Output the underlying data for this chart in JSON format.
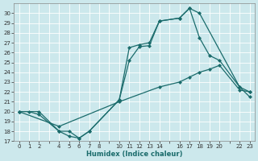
{
  "xlabel": "Humidex (Indice chaleur)",
  "background_color": "#cce8ec",
  "grid_color": "#ffffff",
  "line_color": "#1a6b6b",
  "xlim": [
    -0.5,
    23.5
  ],
  "ylim": [
    17,
    31
  ],
  "xticks_shown": [
    0,
    1,
    2,
    4,
    5,
    6,
    7,
    8,
    10,
    11,
    12,
    13,
    14,
    16,
    17,
    18,
    19,
    20,
    22,
    23
  ],
  "yticks": [
    17,
    18,
    19,
    20,
    21,
    22,
    23,
    24,
    25,
    26,
    27,
    28,
    29,
    30
  ],
  "line1_x": [
    0,
    1,
    2,
    4,
    5,
    6,
    7,
    10,
    11,
    12,
    13,
    14,
    16,
    17,
    18,
    22,
    23
  ],
  "line1_y": [
    20,
    20,
    19.7,
    18,
    17.5,
    17.3,
    18,
    21.2,
    26.5,
    26.8,
    27.0,
    29.2,
    29.5,
    30.5,
    30.0,
    22.5,
    22.0
  ],
  "line2_x": [
    0,
    2,
    4,
    5,
    6,
    7,
    10,
    11,
    12,
    13,
    14,
    16,
    17,
    18,
    19,
    20,
    22,
    23
  ],
  "line2_y": [
    20,
    20,
    18,
    18,
    17.3,
    18.0,
    21.2,
    25.2,
    26.6,
    26.7,
    29.2,
    29.5,
    30.5,
    27.5,
    25.7,
    25.2,
    22.5,
    21.5
  ],
  "line3_x": [
    0,
    4,
    10,
    14,
    16,
    17,
    18,
    19,
    20,
    22,
    23
  ],
  "line3_y": [
    20,
    18.5,
    21.0,
    22.5,
    23.0,
    23.5,
    24.0,
    24.3,
    24.7,
    22.2,
    22.0
  ],
  "minor_xticks": [
    0,
    1,
    2,
    3,
    4,
    5,
    6,
    7,
    8,
    9,
    10,
    11,
    12,
    13,
    14,
    15,
    16,
    17,
    18,
    19,
    20,
    21,
    22,
    23
  ]
}
